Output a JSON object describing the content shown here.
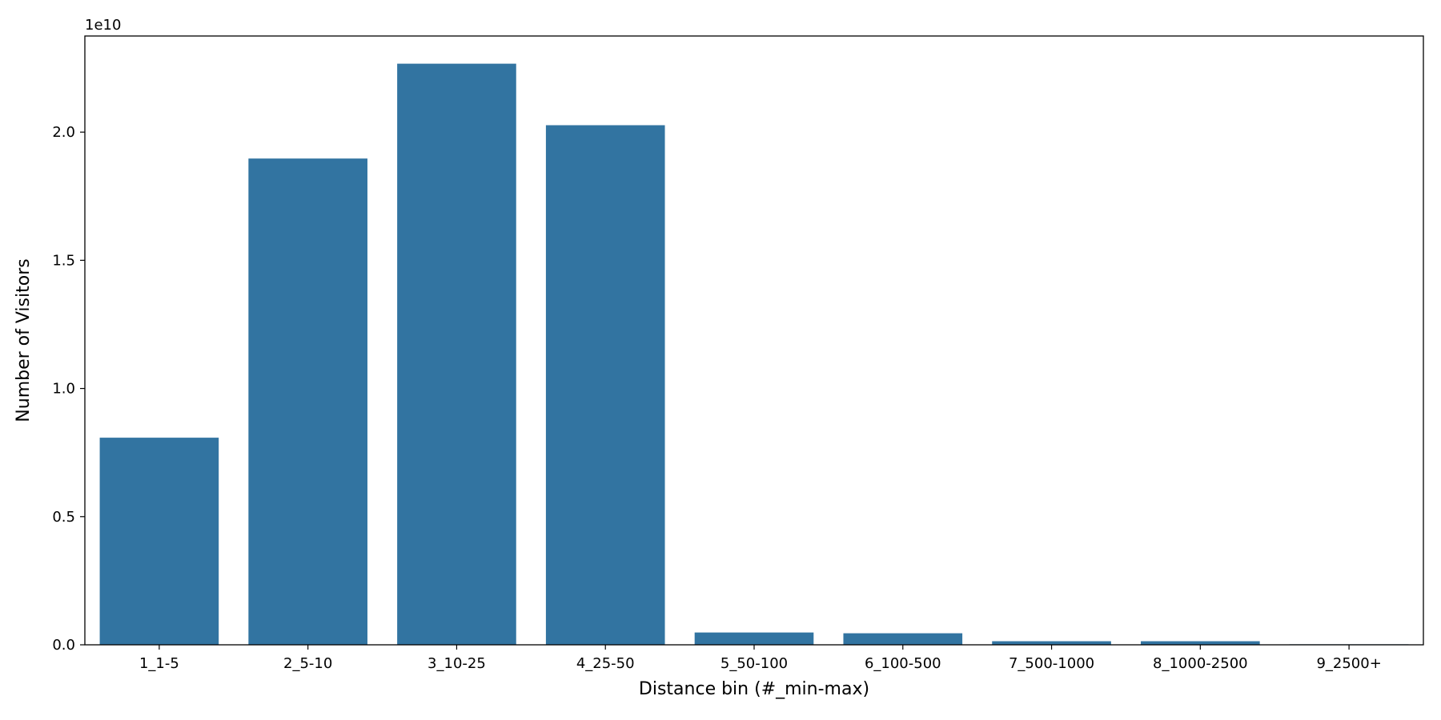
{
  "chart_data": {
    "type": "bar",
    "title": "",
    "xlabel": "Distance bin (#_min-max)",
    "ylabel": "Number of Visitors",
    "y_offset_label": "1e10",
    "y_scale": 10000000000,
    "categories": [
      "1_1-5",
      "2_5-10",
      "3_10-25",
      "4_25-50",
      "5_50-100",
      "6_100-500",
      "7_500-1000",
      "8_1000-2500",
      "9_2500+"
    ],
    "values": [
      8080000000,
      18970000000,
      22670000000,
      20270000000,
      480000000,
      450000000,
      140000000,
      140000000,
      20000000
    ],
    "ylim": [
      0,
      23750000000
    ],
    "yticks": [
      0,
      0.5,
      1.0,
      1.5,
      2.0
    ],
    "ytick_labels": [
      "0.0",
      "0.5",
      "1.0",
      "1.5",
      "2.0"
    ],
    "grid": false,
    "bar_color": "#3274a1"
  }
}
